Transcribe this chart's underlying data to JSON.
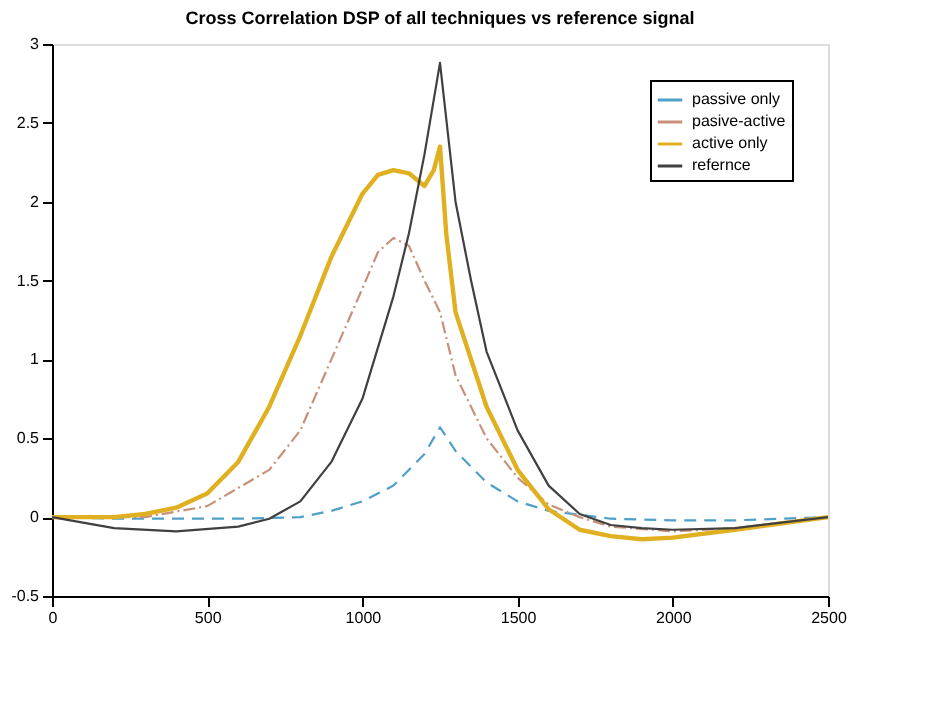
{
  "chart_data": {
    "type": "line",
    "title": "Cross Correlation DSP of all techniques vs reference signal",
    "xlim": [
      0,
      2500
    ],
    "xticks": [
      0,
      500,
      1000,
      1500,
      2000,
      2500
    ],
    "ylim": [
      -0.5,
      3
    ],
    "yticks": [
      -0.5,
      0,
      0.5,
      1,
      1.5,
      2,
      2.5,
      3
    ],
    "grid": false,
    "legend": "top right",
    "marker": "none",
    "series": [
      {
        "name": "passive only",
        "color": "#4f9fc8",
        "line_style": "dashed",
        "x": [
          0,
          200,
          400,
          600,
          800,
          900,
          1000,
          1100,
          1200,
          1250,
          1300,
          1400,
          1500,
          1600,
          1800,
          2000,
          2200,
          2500
        ],
        "values": [
          0,
          -0.01,
          -0.01,
          -0.01,
          0.0,
          0.04,
          0.1,
          0.2,
          0.4,
          0.57,
          0.42,
          0.22,
          0.1,
          0.04,
          -0.01,
          -0.02,
          -0.02,
          0
        ]
      },
      {
        "name": "pasive-active",
        "color": "#c8907a",
        "line_style": "dotted",
        "x": [
          0,
          300,
          500,
          700,
          800,
          900,
          1000,
          1050,
          1100,
          1150,
          1200,
          1250,
          1300,
          1400,
          1500,
          1600,
          1700,
          1800,
          2000,
          2200,
          2500
        ],
        "values": [
          0,
          0.0,
          0.07,
          0.3,
          0.55,
          1.0,
          1.45,
          1.68,
          1.77,
          1.72,
          1.5,
          1.3,
          0.9,
          0.5,
          0.25,
          0.08,
          0.0,
          -0.06,
          -0.09,
          -0.07,
          0
        ]
      },
      {
        "name": "active only",
        "color": "#e0b020",
        "line_style": "solid",
        "x": [
          0,
          200,
          300,
          400,
          500,
          600,
          700,
          800,
          900,
          1000,
          1050,
          1100,
          1150,
          1200,
          1230,
          1250,
          1270,
          1300,
          1400,
          1500,
          1600,
          1700,
          1800,
          1900,
          2000,
          2200,
          2500
        ],
        "values": [
          0,
          0.0,
          0.02,
          0.06,
          0.15,
          0.35,
          0.7,
          1.15,
          1.65,
          2.05,
          2.17,
          2.2,
          2.18,
          2.1,
          2.2,
          2.35,
          1.8,
          1.3,
          0.7,
          0.3,
          0.05,
          -0.08,
          -0.12,
          -0.14,
          -0.13,
          -0.08,
          0
        ]
      },
      {
        "name": "refernce",
        "color": "#404040",
        "line_style": "solid",
        "x": [
          0,
          200,
          400,
          600,
          700,
          800,
          900,
          1000,
          1100,
          1150,
          1200,
          1250,
          1300,
          1350,
          1400,
          1500,
          1600,
          1700,
          1800,
          1900,
          2000,
          2200,
          2500
        ],
        "values": [
          0,
          -0.07,
          -0.09,
          -0.06,
          -0.01,
          0.1,
          0.35,
          0.75,
          1.4,
          1.8,
          2.3,
          2.88,
          2.0,
          1.5,
          1.05,
          0.55,
          0.2,
          0.02,
          -0.05,
          -0.07,
          -0.08,
          -0.07,
          0
        ]
      }
    ]
  }
}
